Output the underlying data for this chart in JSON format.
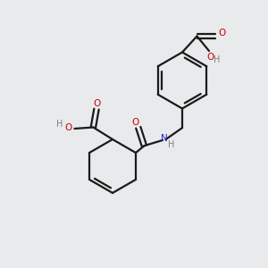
{
  "bg_color": "#e8eaeb",
  "bond_color": "#1a1a1a",
  "oxygen_color": "#cc0000",
  "nitrogen_color": "#2222cc",
  "gray_color": "#808080",
  "line_width": 1.6,
  "figsize": [
    3.0,
    3.0
  ],
  "dpi": 100,
  "xlim": [
    0,
    10
  ],
  "ylim": [
    0,
    10
  ]
}
